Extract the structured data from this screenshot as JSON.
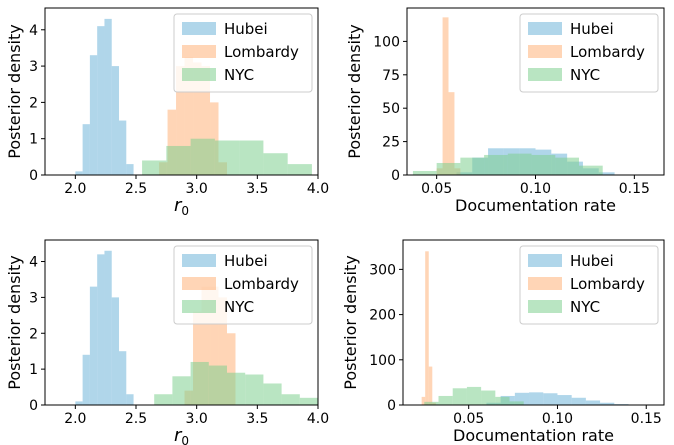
{
  "colors": {
    "Hubei": "#6fb5d9",
    "Lombardy": "#ffb27a",
    "NYC": "#7fcf8f"
  },
  "chart_data": [
    {
      "type": "bar",
      "subtype": "histogram",
      "xlabel": "r",
      "xlabel_sub": "0",
      "ylabel": "Posterior density",
      "xlim": [
        1.75,
        4.0
      ],
      "ylim": [
        0,
        4.6
      ],
      "xticks": [
        "2.0",
        "2.5",
        "3.0",
        "3.5",
        "4.0"
      ],
      "xtick_values": [
        2.0,
        2.5,
        3.0,
        3.5,
        4.0
      ],
      "yticks": [
        "0",
        "1",
        "2",
        "3",
        "4"
      ],
      "ytick_values": [
        0,
        1,
        2,
        3,
        4
      ],
      "legend": {
        "position": "top-right",
        "entries": [
          "Hubei",
          "Lombardy",
          "NYC"
        ]
      },
      "series": [
        {
          "name": "Hubei",
          "bin_edges": [
            2.0,
            2.06,
            2.12,
            2.18,
            2.24,
            2.3,
            2.36,
            2.42,
            2.48
          ],
          "values": [
            0.1,
            1.4,
            3.3,
            4.1,
            4.3,
            3.0,
            1.5,
            0.3
          ]
        },
        {
          "name": "Lombardy",
          "bin_edges": [
            2.69,
            2.76,
            2.83,
            2.9,
            2.97,
            3.04,
            3.11,
            3.18,
            3.25
          ],
          "values": [
            0.35,
            1.8,
            3.0,
            3.25,
            3.1,
            3.0,
            2.0,
            0.35
          ]
        },
        {
          "name": "NYC",
          "bin_edges": [
            2.55,
            2.75,
            2.95,
            3.15,
            3.35,
            3.55,
            3.75,
            3.95
          ],
          "values": [
            0.4,
            0.8,
            1.0,
            0.95,
            0.95,
            0.6,
            0.3
          ]
        }
      ]
    },
    {
      "type": "bar",
      "subtype": "histogram",
      "xlabel": "Documentation rate",
      "ylabel": "Posterior density",
      "xlim": [
        0.035,
        0.165
      ],
      "ylim": [
        0,
        125
      ],
      "xticks": [
        "0.05",
        "0.10",
        "0.15"
      ],
      "xtick_values": [
        0.05,
        0.1,
        0.15
      ],
      "yticks": [
        "0",
        "25",
        "50",
        "75",
        "100"
      ],
      "ytick_values": [
        0,
        25,
        50,
        75,
        100
      ],
      "legend": {
        "position": "top-right",
        "entries": [
          "Hubei",
          "Lombardy",
          "NYC"
        ]
      },
      "series": [
        {
          "name": "Hubei",
          "bin_edges": [
            0.06,
            0.068,
            0.076,
            0.084,
            0.092,
            0.1,
            0.108,
            0.116,
            0.124,
            0.132,
            0.14
          ],
          "values": [
            2,
            13,
            20,
            20,
            20,
            19,
            16,
            10,
            5,
            2
          ]
        },
        {
          "name": "Lombardy",
          "bin_edges": [
            0.05,
            0.053,
            0.056,
            0.059,
            0.062
          ],
          "values": [
            5,
            118,
            62,
            5
          ]
        },
        {
          "name": "NYC",
          "bin_edges": [
            0.038,
            0.05,
            0.062,
            0.074,
            0.086,
            0.098,
            0.11,
            0.122,
            0.134
          ],
          "values": [
            3,
            9,
            13,
            15,
            16,
            15,
            13,
            7
          ]
        }
      ]
    },
    {
      "type": "bar",
      "subtype": "histogram",
      "xlabel": "r",
      "xlabel_sub": "0",
      "ylabel": "Posterior density",
      "xlim": [
        1.75,
        4.0
      ],
      "ylim": [
        0,
        4.6
      ],
      "xticks": [
        "2.0",
        "2.5",
        "3.0",
        "3.5",
        "4.0"
      ],
      "xtick_values": [
        2.0,
        2.5,
        3.0,
        3.5,
        4.0
      ],
      "yticks": [
        "0",
        "1",
        "2",
        "3",
        "4"
      ],
      "ytick_values": [
        0,
        1,
        2,
        3,
        4
      ],
      "legend": {
        "position": "top-right",
        "entries": [
          "Hubei",
          "Lombardy",
          "NYC"
        ]
      },
      "series": [
        {
          "name": "Hubei",
          "bin_edges": [
            2.0,
            2.06,
            2.12,
            2.18,
            2.24,
            2.3,
            2.36,
            2.42,
            2.48
          ],
          "values": [
            0.1,
            1.4,
            3.3,
            4.2,
            4.3,
            3.0,
            1.5,
            0.3
          ]
        },
        {
          "name": "Lombardy",
          "bin_edges": [
            2.9,
            2.97,
            3.04,
            3.11,
            3.18,
            3.25,
            3.32
          ],
          "values": [
            0.4,
            2.6,
            3.3,
            3.3,
            3.0,
            2.0
          ]
        },
        {
          "name": "NYC",
          "bin_edges": [
            2.65,
            2.8,
            2.95,
            3.1,
            3.25,
            3.4,
            3.55,
            3.7,
            3.85,
            4.0
          ],
          "values": [
            0.3,
            0.8,
            1.2,
            1.1,
            0.9,
            0.85,
            0.6,
            0.3,
            0.2
          ]
        }
      ]
    },
    {
      "type": "bar",
      "subtype": "histogram",
      "xlabel": "Documentation rate",
      "ylabel": "Posterior density",
      "xlim": [
        0.013,
        0.16
      ],
      "ylim": [
        0,
        365
      ],
      "xticks": [
        "0.05",
        "0.10",
        "0.15"
      ],
      "xtick_values": [
        0.05,
        0.1,
        0.15
      ],
      "yticks": [
        "0",
        "100",
        "200",
        "300"
      ],
      "ytick_values": [
        0,
        100,
        200,
        300
      ],
      "legend": {
        "position": "top-right",
        "entries": [
          "Hubei",
          "Lombardy",
          "NYC"
        ]
      },
      "series": [
        {
          "name": "Hubei",
          "bin_edges": [
            0.06,
            0.068,
            0.076,
            0.084,
            0.092,
            0.1,
            0.108,
            0.116,
            0.124,
            0.132,
            0.14
          ],
          "values": [
            5,
            20,
            27,
            28,
            26,
            22,
            16,
            10,
            5,
            2
          ]
        },
        {
          "name": "Lombardy",
          "bin_edges": [
            0.0235,
            0.0255,
            0.0275,
            0.0295,
            0.0315
          ],
          "values": [
            18,
            340,
            85,
            5
          ]
        },
        {
          "name": "NYC",
          "bin_edges": [
            0.025,
            0.033,
            0.041,
            0.049,
            0.057,
            0.065,
            0.073,
            0.081
          ],
          "values": [
            7,
            20,
            37,
            40,
            32,
            18,
            8
          ]
        }
      ]
    }
  ]
}
